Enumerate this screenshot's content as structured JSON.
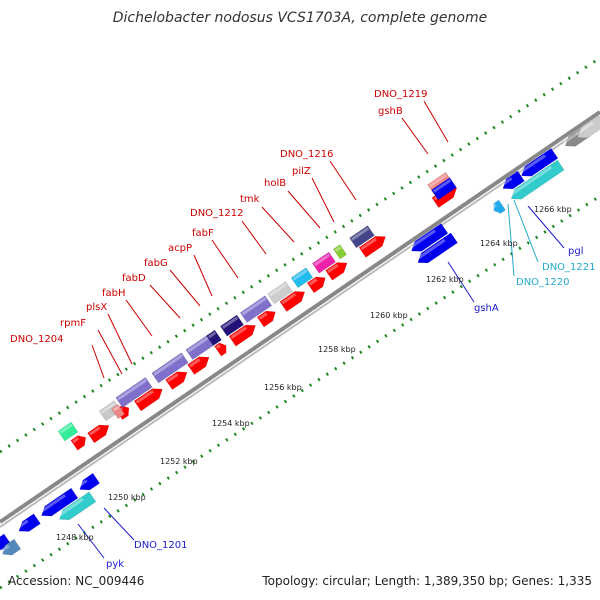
{
  "title": "Dichelobacter nodosus VCS1703A, complete genome",
  "footer": {
    "accession": "Accession: NC_009446",
    "summary": "Topology: circular; Length: 1,389,350 bp; Genes: 1,335"
  },
  "colors": {
    "label_red": "#cc0000",
    "label_navy": "#1a1acc",
    "label_cyan": "#22aacc",
    "cds_forward": "#ff0000",
    "cds_reverse": "#0000ee",
    "cds_cyan": "#33cccc",
    "ticks": "#228822"
  },
  "kbp_ticks": [
    {
      "text": "1248 kbp"
    },
    {
      "text": "1250 kbp"
    },
    {
      "text": "1252 kbp"
    },
    {
      "text": "1254 kbp"
    },
    {
      "text": "1256 kbp"
    },
    {
      "text": "1258 kbp"
    },
    {
      "text": "1260 kbp"
    },
    {
      "text": "1262 kbp"
    },
    {
      "text": "1264 kbp"
    },
    {
      "text": "1266 kbp"
    }
  ],
  "gene_labels": [
    {
      "name": "DNO_1204",
      "color": "#cc0000"
    },
    {
      "name": "rpmF",
      "color": "#cc0000"
    },
    {
      "name": "plsX",
      "color": "#cc0000"
    },
    {
      "name": "fabH",
      "color": "#cc0000"
    },
    {
      "name": "fabD",
      "color": "#cc0000"
    },
    {
      "name": "fabG",
      "color": "#cc0000"
    },
    {
      "name": "acpP",
      "color": "#cc0000"
    },
    {
      "name": "fabF",
      "color": "#cc0000"
    },
    {
      "name": "DNO_1212",
      "color": "#cc0000"
    },
    {
      "name": "tmk",
      "color": "#cc0000"
    },
    {
      "name": "holB",
      "color": "#cc0000"
    },
    {
      "name": "pilZ",
      "color": "#cc0000"
    },
    {
      "name": "DNO_1216",
      "color": "#cc0000"
    },
    {
      "name": "gshB",
      "color": "#cc0000"
    },
    {
      "name": "DNO_1219",
      "color": "#cc0000"
    },
    {
      "name": "pgl",
      "color": "#1a1acc"
    },
    {
      "name": "DNO_1221",
      "color": "#22aacc"
    },
    {
      "name": "DNO_1220",
      "color": "#22aacc"
    },
    {
      "name": "gshA",
      "color": "#1a1acc"
    },
    {
      "name": "DNO_1201",
      "color": "#1a1acc"
    },
    {
      "name": "pyk",
      "color": "#1a1acc"
    }
  ]
}
